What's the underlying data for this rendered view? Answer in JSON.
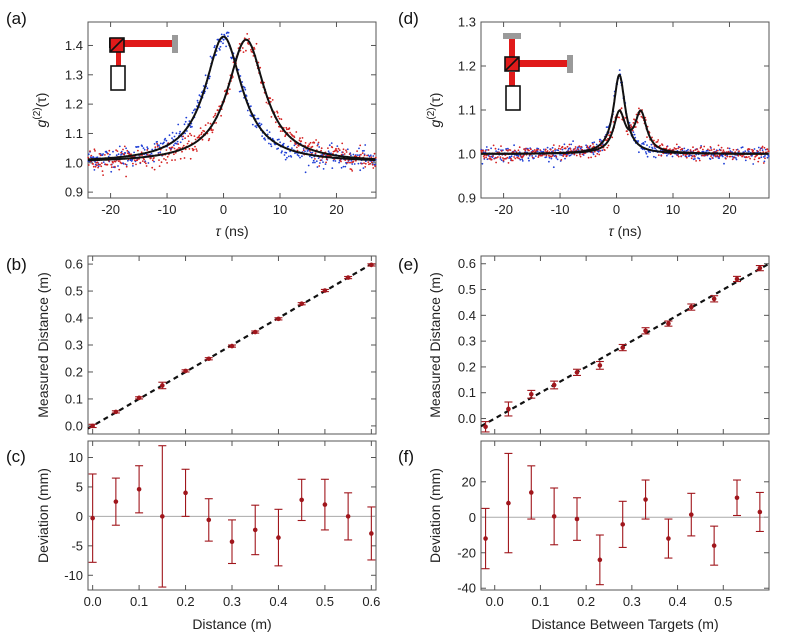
{
  "figure": {
    "panel_labels": [
      "(a)",
      "(b)",
      "(c)",
      "(d)",
      "(e)",
      "(f)"
    ],
    "colors": {
      "blue": "#1f3fd6",
      "red": "#d42020",
      "black": "#111111",
      "marker": "#a0161c",
      "grey": "#9a9a9a"
    }
  },
  "chart_data": [
    {
      "id": "a",
      "type": "scatter",
      "title": "",
      "xlabel_sym": "τ",
      "xlabel_unit": " (ns)",
      "ylabel_base": "g",
      "ylabel_sup": "(2)",
      "ylabel_arg": "(τ)",
      "xlim": [
        -24,
        27
      ],
      "ylim": [
        0.88,
        1.48
      ],
      "xticks": [
        -20,
        -10,
        0,
        10,
        20
      ],
      "xtick_labels": [
        "-20",
        "-10",
        "0",
        "10",
        "20"
      ],
      "yticks": [
        0.9,
        1.0,
        1.1,
        1.2,
        1.3,
        1.4
      ],
      "ytick_labels": [
        "0.9",
        "1.0",
        "1.1",
        "1.2",
        "1.3",
        "1.4"
      ],
      "series": [
        {
          "name": "blue data",
          "color": "blue",
          "kind": "dots",
          "center": 0,
          "peak_height": 0.43,
          "width_ns": 8,
          "baseline": 1.0
        },
        {
          "name": "red data",
          "color": "red",
          "kind": "dots",
          "center": 4,
          "peak_height": 0.42,
          "width_ns": 8,
          "baseline": 1.0
        },
        {
          "name": "fit 1",
          "color": "black",
          "kind": "line",
          "center": 0,
          "peak_height": 0.43,
          "width_ns": 8,
          "baseline": 1.0
        },
        {
          "name": "fit 2",
          "color": "black",
          "kind": "line",
          "center": 4,
          "peak_height": 0.42,
          "width_ns": 8,
          "baseline": 1.0
        }
      ]
    },
    {
      "id": "d",
      "type": "scatter",
      "title": "",
      "xlabel_sym": "τ",
      "xlabel_unit": " (ns)",
      "ylabel_base": "g",
      "ylabel_sup": "(2)",
      "ylabel_arg": "(τ)",
      "xlim": [
        -24,
        27
      ],
      "ylim": [
        0.9,
        1.3
      ],
      "xticks": [
        -20,
        -10,
        0,
        10,
        20
      ],
      "xtick_labels": [
        "-20",
        "-10",
        "0",
        "10",
        "20"
      ],
      "yticks": [
        0.9,
        1.0,
        1.1,
        1.2,
        1.3
      ],
      "ytick_labels": [
        "0.9",
        "1.0",
        "1.1",
        "1.2",
        "1.3"
      ],
      "series": [
        {
          "name": "blue data",
          "color": "blue",
          "kind": "dots",
          "center": 0.5,
          "peak_height": 0.18,
          "width_ns": 2.5,
          "baseline": 1.0
        },
        {
          "name": "red data",
          "color": "red",
          "kind": "dots",
          "center": 0.5,
          "peak_height": 0.09,
          "width_ns": 2.5,
          "baseline": 1.0,
          "center2": 4.3,
          "peak_height2": 0.09
        },
        {
          "name": "fit 1",
          "color": "black",
          "kind": "line",
          "center": 0.5,
          "peak_height": 0.18,
          "width_ns": 2.5,
          "baseline": 1.0
        },
        {
          "name": "fit 2",
          "color": "black",
          "kind": "line",
          "center": 0.5,
          "peak_height": 0.09,
          "width_ns": 2.5,
          "baseline": 1.0,
          "center2": 4.3,
          "peak_height2": 0.09
        }
      ]
    },
    {
      "id": "b",
      "type": "scatter",
      "xlabel": "",
      "ylabel": "Measured Distance (m)",
      "xlim": [
        -0.01,
        0.61
      ],
      "ylim": [
        -0.03,
        0.63
      ],
      "xticks": [
        0.0,
        0.1,
        0.2,
        0.3,
        0.4,
        0.5,
        0.6
      ],
      "xtick_labels": [],
      "yticks": [
        0.0,
        0.1,
        0.2,
        0.3,
        0.4,
        0.5,
        0.6
      ],
      "ytick_labels": [
        "0.0",
        "0.1",
        "0.2",
        "0.3",
        "0.4",
        "0.5",
        "0.6"
      ],
      "x": [
        0.0,
        0.05,
        0.1,
        0.15,
        0.2,
        0.25,
        0.3,
        0.35,
        0.4,
        0.45,
        0.5,
        0.55,
        0.6
      ],
      "y": [
        0.0,
        0.052,
        0.104,
        0.15,
        0.204,
        0.249,
        0.296,
        0.348,
        0.397,
        0.453,
        0.502,
        0.55,
        0.597
      ],
      "err": [
        0.006,
        0.004,
        0.004,
        0.012,
        0.004,
        0.004,
        0.004,
        0.004,
        0.004,
        0.004,
        0.004,
        0.004,
        0.004
      ],
      "fit": [
        [
          -0.01,
          -0.01
        ],
        [
          0.61,
          0.61
        ]
      ]
    },
    {
      "id": "e",
      "type": "scatter",
      "xlabel": "",
      "ylabel": "Measured Distance (m)",
      "xlim": [
        -0.03,
        0.6
      ],
      "ylim": [
        -0.06,
        0.63
      ],
      "xticks": [
        0.0,
        0.1,
        0.2,
        0.3,
        0.4,
        0.5
      ],
      "xtick_labels": [],
      "yticks": [
        0.0,
        0.1,
        0.2,
        0.3,
        0.4,
        0.5,
        0.6
      ],
      "ytick_labels": [
        "0.0",
        "0.1",
        "0.2",
        "0.3",
        "0.4",
        "0.5",
        "0.6"
      ],
      "x": [
        -0.02,
        0.03,
        0.08,
        0.13,
        0.18,
        0.23,
        0.28,
        0.33,
        0.38,
        0.43,
        0.48,
        0.53,
        0.58
      ],
      "y": [
        -0.032,
        0.037,
        0.094,
        0.13,
        0.179,
        0.206,
        0.275,
        0.34,
        0.368,
        0.432,
        0.464,
        0.541,
        0.583
      ],
      "err": [
        0.02,
        0.027,
        0.015,
        0.015,
        0.012,
        0.015,
        0.012,
        0.012,
        0.01,
        0.012,
        0.012,
        0.01,
        0.01
      ],
      "fit": [
        [
          -0.03,
          -0.03
        ],
        [
          0.6,
          0.6
        ]
      ]
    },
    {
      "id": "c",
      "type": "scatter",
      "xlabel": "Distance (m)",
      "ylabel": "Deviation (mm)",
      "xlim": [
        -0.01,
        0.61
      ],
      "ylim": [
        -12.5,
        12.8
      ],
      "xticks": [
        0.0,
        0.1,
        0.2,
        0.3,
        0.4,
        0.5,
        0.6
      ],
      "xtick_labels": [
        "0.0",
        "0.1",
        "0.2",
        "0.3",
        "0.4",
        "0.5",
        "0.6"
      ],
      "yticks": [
        -10,
        -5,
        0,
        5,
        10
      ],
      "ytick_labels": [
        "-10",
        "-5",
        "0",
        "5",
        "10"
      ],
      "x": [
        0.0,
        0.05,
        0.1,
        0.15,
        0.2,
        0.25,
        0.3,
        0.35,
        0.4,
        0.45,
        0.5,
        0.55,
        0.6
      ],
      "y": [
        -0.3,
        2.5,
        4.6,
        0.0,
        4.0,
        -0.6,
        -4.3,
        -2.3,
        -3.6,
        2.8,
        2.0,
        0.0,
        -2.9
      ],
      "err": [
        7.5,
        4.0,
        4.0,
        12.0,
        4.0,
        3.6,
        3.7,
        4.2,
        4.8,
        3.5,
        4.3,
        4.0,
        4.5
      ],
      "zero_line": 0
    },
    {
      "id": "f",
      "type": "scatter",
      "xlabel": "Distance Between Targets (m)",
      "ylabel": "Deviation (mm)",
      "xlim": [
        -0.03,
        0.6
      ],
      "ylim": [
        -41,
        43
      ],
      "xticks": [
        0.0,
        0.1,
        0.2,
        0.3,
        0.4,
        0.5
      ],
      "xtick_labels": [
        "0.0",
        "0.1",
        "0.2",
        "0.3",
        "0.4",
        "0.5"
      ],
      "yticks": [
        -40,
        -20,
        0,
        20
      ],
      "ytick_labels": [
        "-40",
        "-20",
        "0",
        "20"
      ],
      "x": [
        -0.02,
        0.03,
        0.08,
        0.13,
        0.18,
        0.23,
        0.28,
        0.33,
        0.38,
        0.43,
        0.48,
        0.53,
        0.58
      ],
      "y": [
        -12,
        8,
        14,
        0.5,
        -1,
        -24,
        -4,
        10,
        -12,
        1.5,
        -16,
        11,
        3
      ],
      "err": [
        17,
        28,
        15,
        16,
        12,
        14,
        13,
        11,
        11,
        12,
        11,
        10,
        11
      ],
      "zero_line": 0
    }
  ]
}
